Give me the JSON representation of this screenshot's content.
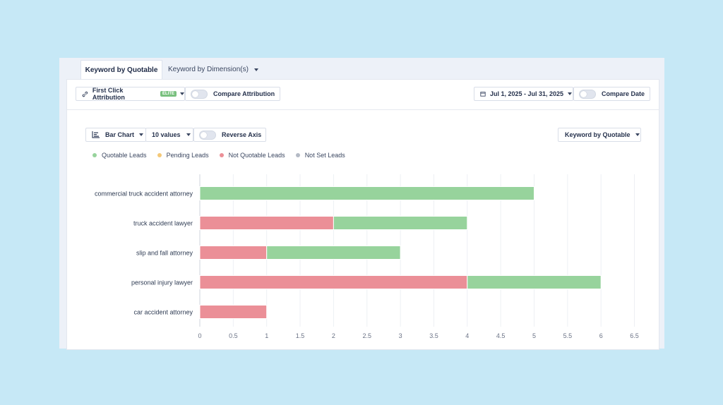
{
  "tabs": [
    {
      "label": "Keyword by Quotable",
      "active": true
    },
    {
      "label": "Keyword by Dimension(s)",
      "active": false
    }
  ],
  "toolbar": {
    "attribution_label": "First Click Attribution",
    "attribution_badge": "ELITE",
    "compare_attribution_label": "Compare Attribution",
    "date_range": "Jul 1, 2025 - Jul 31, 2025",
    "compare_date_label": "Compare Date"
  },
  "chart_controls": {
    "chart_type": "Bar Chart",
    "values_count": "10 values",
    "reverse_axis_label": "Reverse Axis",
    "group_by": "Keyword by Quotable"
  },
  "legend": [
    {
      "label": "Quotable Leads",
      "color": "#97d39c"
    },
    {
      "label": "Pending Leads",
      "color": "#f4c878"
    },
    {
      "label": "Not Quotable Leads",
      "color": "#eb8f97"
    },
    {
      "label": "Not Set Leads",
      "color": "#b4bac5"
    }
  ],
  "chart_data": {
    "type": "bar",
    "orientation": "horizontal",
    "stacked": true,
    "categories": [
      "commercial truck accident attorney",
      "truck accident lawyer",
      "slip and fall attorney",
      "personal injury lawyer",
      "car accident attorney"
    ],
    "series": [
      {
        "name": "Not Quotable Leads",
        "color": "#eb8f97",
        "values": [
          0,
          2,
          1,
          4,
          1
        ]
      },
      {
        "name": "Quotable Leads",
        "color": "#97d39c",
        "values": [
          5,
          2,
          2,
          2,
          0
        ]
      },
      {
        "name": "Pending Leads",
        "color": "#f4c878",
        "values": [
          0,
          0,
          0,
          0,
          0
        ]
      },
      {
        "name": "Not Set Leads",
        "color": "#b4bac5",
        "values": [
          0,
          0,
          0,
          0,
          0
        ]
      }
    ],
    "xlim": [
      0,
      6.5
    ],
    "xticks": [
      "0",
      "0.5",
      "1",
      "1.5",
      "2",
      "2.5",
      "3",
      "3.5",
      "4",
      "4.5",
      "5",
      "5.5",
      "6",
      "6.5"
    ],
    "grid": true
  }
}
